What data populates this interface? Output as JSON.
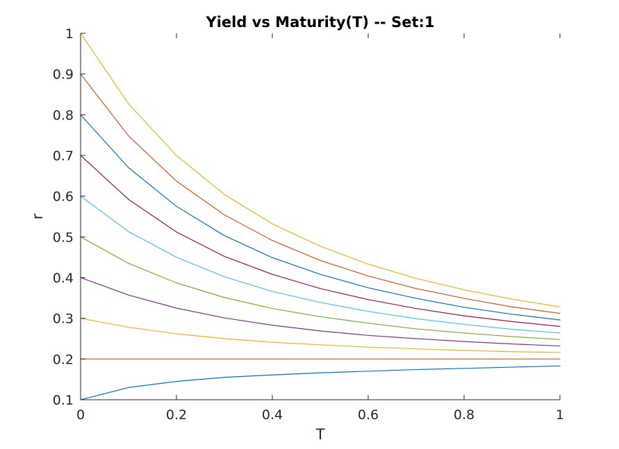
{
  "chart_data": {
    "type": "line",
    "title": "Yield vs Maturity(T) -- Set:1",
    "xlabel": "T",
    "ylabel": "r",
    "xlim": [
      0,
      1
    ],
    "ylim": [
      0.1,
      1
    ],
    "x_ticks": [
      "0",
      "0.2",
      "0.4",
      "0.6",
      "0.8",
      "1"
    ],
    "y_ticks": [
      "0.1",
      "0.2",
      "0.3",
      "0.4",
      "0.5",
      "0.6",
      "0.7",
      "0.8",
      "0.9",
      "1"
    ],
    "grid": false,
    "legend": "none",
    "x": [
      0,
      0.1,
      0.2,
      0.3,
      0.4,
      0.5,
      0.6,
      0.7,
      0.8,
      0.9,
      1
    ],
    "series": [
      {
        "color": "#0072BD",
        "values": [
          0.1,
          0.13,
          0.145,
          0.155,
          0.161,
          0.166,
          0.17,
          0.174,
          0.177,
          0.18,
          0.183
        ]
      },
      {
        "color": "#D95319",
        "values": [
          0.2,
          0.2,
          0.2,
          0.2,
          0.2,
          0.2,
          0.2,
          0.2,
          0.2,
          0.2,
          0.2
        ]
      },
      {
        "color": "#EDB120",
        "values": [
          0.3,
          0.278,
          0.262,
          0.25,
          0.241,
          0.235,
          0.229,
          0.225,
          0.221,
          0.218,
          0.216
        ]
      },
      {
        "color": "#7E2F8E",
        "values": [
          0.4,
          0.357,
          0.325,
          0.301,
          0.283,
          0.269,
          0.258,
          0.25,
          0.243,
          0.237,
          0.232
        ]
      },
      {
        "color": "#77AC30",
        "values": [
          0.5,
          0.435,
          0.387,
          0.351,
          0.324,
          0.304,
          0.288,
          0.274,
          0.264,
          0.255,
          0.248
        ]
      },
      {
        "color": "#4DBEEE",
        "values": [
          0.6,
          0.513,
          0.45,
          0.402,
          0.366,
          0.339,
          0.317,
          0.299,
          0.285,
          0.273,
          0.264
        ]
      },
      {
        "color": "#A2142F",
        "values": [
          0.7,
          0.592,
          0.512,
          0.452,
          0.408,
          0.373,
          0.346,
          0.324,
          0.306,
          0.292,
          0.28
        ]
      },
      {
        "color": "#0072BD",
        "values": [
          0.8,
          0.67,
          0.575,
          0.503,
          0.449,
          0.408,
          0.375,
          0.349,
          0.327,
          0.31,
          0.296
        ]
      },
      {
        "color": "#D95319",
        "values": [
          0.9,
          0.748,
          0.637,
          0.554,
          0.491,
          0.442,
          0.404,
          0.373,
          0.349,
          0.328,
          0.312
        ]
      },
      {
        "color": "#EDB120",
        "values": [
          1.0,
          0.827,
          0.7,
          0.604,
          0.532,
          0.477,
          0.433,
          0.398,
          0.37,
          0.347,
          0.328
        ]
      }
    ]
  }
}
